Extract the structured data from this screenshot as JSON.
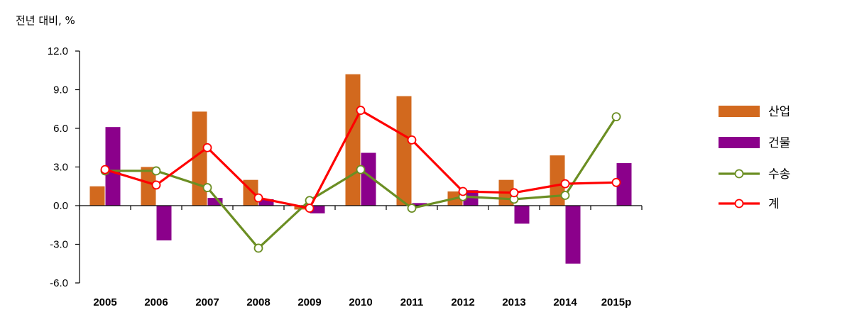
{
  "chart_data": {
    "type": "bar",
    "unit_label": "전년 대비, %",
    "categories": [
      "2005",
      "2006",
      "2007",
      "2008",
      "2009",
      "2010",
      "2011",
      "2012",
      "2013",
      "2014",
      "2015p"
    ],
    "ylim": [
      -6.0,
      12.0
    ],
    "yticks": [
      "12.0",
      "9.0",
      "6.0",
      "3.0",
      "0.0",
      "-3.0",
      "-6.0"
    ],
    "ytick_values": [
      12,
      9,
      6,
      3,
      0,
      -3,
      -6
    ],
    "grid": false,
    "legend_position": "right",
    "series": [
      {
        "name": "산업",
        "kind": "bar",
        "color": "#D2691E",
        "values": [
          1.5,
          3.0,
          7.3,
          2.0,
          -0.3,
          10.2,
          8.5,
          1.1,
          2.0,
          3.9,
          null
        ]
      },
      {
        "name": "건물",
        "kind": "bar",
        "color": "#8B008B",
        "values": [
          6.1,
          -2.7,
          0.6,
          0.5,
          -0.6,
          4.1,
          0.2,
          1.2,
          -1.4,
          -4.5,
          3.3
        ]
      },
      {
        "name": "수송",
        "kind": "line",
        "color": "#6B8E23",
        "values": [
          2.7,
          2.7,
          1.4,
          -3.3,
          0.4,
          2.8,
          -0.2,
          0.7,
          0.5,
          0.8,
          6.9
        ]
      },
      {
        "name": "계",
        "kind": "line",
        "color": "#FF0000",
        "values": [
          2.8,
          1.6,
          4.5,
          0.6,
          -0.2,
          7.4,
          5.1,
          1.1,
          1.0,
          1.7,
          1.8
        ]
      }
    ]
  }
}
